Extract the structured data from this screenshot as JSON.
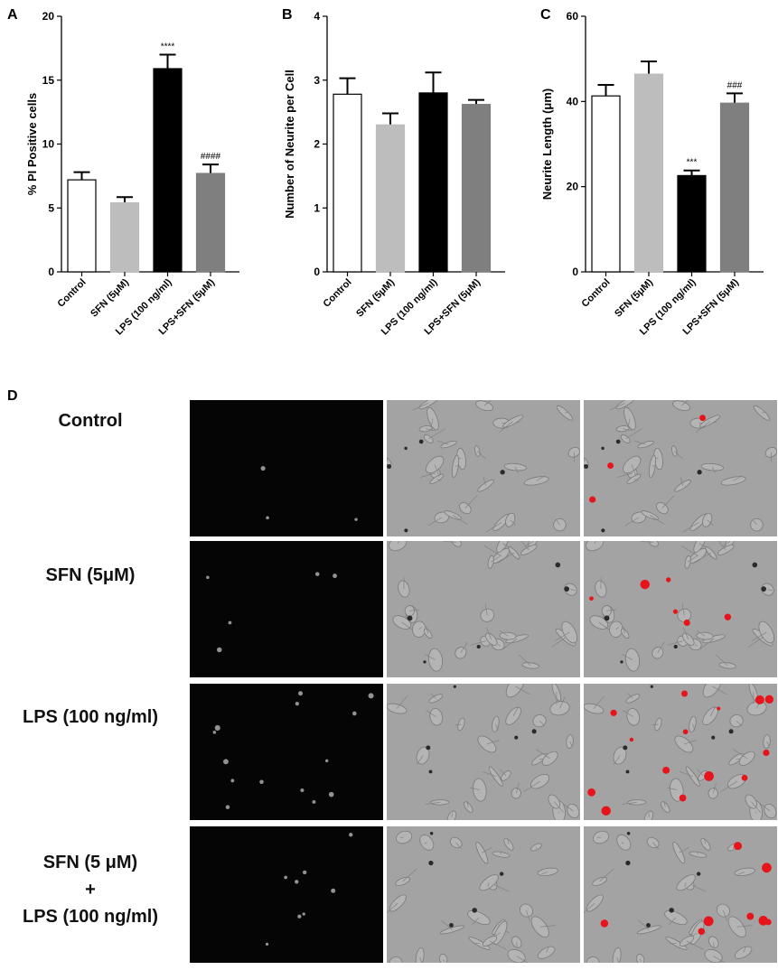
{
  "panels": {
    "a": "A",
    "b": "B",
    "c": "C",
    "d": "D"
  },
  "chart_data": [
    {
      "type": "bar",
      "panel": "A",
      "ylabel": "% PI Positive cells",
      "ylim": [
        0,
        20
      ],
      "yticks": [
        0,
        5,
        10,
        15,
        20
      ],
      "categories": [
        "Control",
        "SFN (5μM)",
        "LPS (100 ng/ml)",
        "LPS+SFN (5μM)"
      ],
      "values": [
        7.2,
        5.4,
        15.9,
        7.7
      ],
      "errors": [
        0.6,
        0.45,
        1.1,
        0.7
      ],
      "annotations": [
        "",
        "",
        "****",
        "####"
      ],
      "colors": [
        "#ffffff",
        "#bdbdbd",
        "#000000",
        "#7f7f7f"
      ]
    },
    {
      "type": "bar",
      "panel": "B",
      "ylabel": "Number of Neurite per Cell",
      "ylim": [
        0,
        4
      ],
      "yticks": [
        0,
        1,
        2,
        3,
        4
      ],
      "categories": [
        "Control",
        "SFN (5μM)",
        "LPS (100 ng/ml)",
        "LPS+SFN (5μM)"
      ],
      "values": [
        2.78,
        2.3,
        2.8,
        2.62
      ],
      "errors": [
        0.25,
        0.18,
        0.32,
        0.07
      ],
      "annotations": [
        "",
        "",
        "",
        ""
      ],
      "colors": [
        "#ffffff",
        "#bdbdbd",
        "#000000",
        "#7f7f7f"
      ]
    },
    {
      "type": "bar",
      "panel": "C",
      "ylabel": "Neurite Length (μm)",
      "ylim": [
        0,
        60
      ],
      "yticks": [
        0,
        20,
        40,
        60
      ],
      "categories": [
        "Control",
        "SFN (5μM)",
        "LPS (100 ng/ml)",
        "LPS+SFN (5μM)"
      ],
      "values": [
        41.3,
        46.4,
        22.6,
        39.6
      ],
      "errors": [
        2.6,
        3.0,
        1.2,
        2.3
      ],
      "annotations": [
        "",
        "",
        "***",
        "###"
      ],
      "colors": [
        "#ffffff",
        "#bdbdbd",
        "#000000",
        "#7f7f7f"
      ]
    }
  ],
  "panel_d": {
    "rows": [
      {
        "label_lines": [
          "Control"
        ],
        "fluor_dots": 3,
        "red_dots": 3
      },
      {
        "label_lines": [
          "SFN (5μM)"
        ],
        "fluor_dots": 5,
        "red_dots": 6
      },
      {
        "label_lines": [
          "LPS (100 ng/ml)"
        ],
        "fluor_dots": 14,
        "red_dots": 14
      },
      {
        "label_lines": [
          "SFN (5 μM)",
          "+",
          "LPS (100 ng/ml)"
        ],
        "fluor_dots": 8,
        "red_dots": 8
      }
    ],
    "columns": [
      "fluorescence",
      "brightfield",
      "merge"
    ]
  }
}
